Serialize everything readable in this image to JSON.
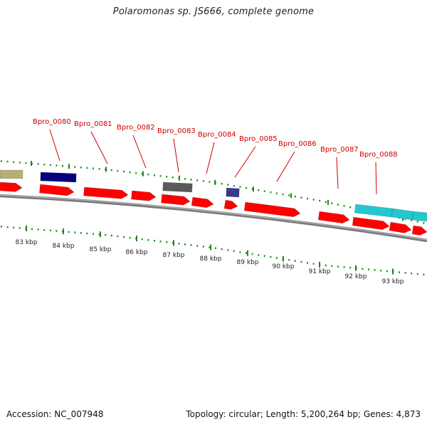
{
  "header": {
    "title": "Polaromonas sp. JS666, complete genome"
  },
  "footer": {
    "accession": "Accession: NC_007948",
    "summary": "Topology: circular; Length: 5,200,264 bp; Genes: 4,873"
  },
  "colors": {
    "cds_forward": "#ff0000",
    "cds_dark": "#00007f",
    "cds_gray": "#5a5a5a",
    "cds_slate": "#3a3a8c",
    "cds_olive": "#b5b07a",
    "cds_cyan": "#22c7cf",
    "tick": "#1a8c1a",
    "label": "#cc0000",
    "backbone": "#7a7a7a"
  },
  "scale": {
    "unit": "kbp",
    "ticks": [
      {
        "kbp": 83,
        "label": "83 kbp"
      },
      {
        "kbp": 84,
        "label": "84 kbp"
      },
      {
        "kbp": 85,
        "label": "85 kbp"
      },
      {
        "kbp": 86,
        "label": "86 kbp"
      },
      {
        "kbp": 87,
        "label": "87 kbp"
      },
      {
        "kbp": 88,
        "label": "88 kbp"
      },
      {
        "kbp": 89,
        "label": "89 kbp"
      },
      {
        "kbp": 90,
        "label": "90 kbp"
      },
      {
        "kbp": 91,
        "label": "91 kbp"
      },
      {
        "kbp": 92,
        "label": "92 kbp"
      },
      {
        "kbp": 93,
        "label": "93 kbp"
      }
    ]
  },
  "genes": [
    {
      "name": "Bpro_0080"
    },
    {
      "name": "Bpro_0081"
    },
    {
      "name": "Bpro_0082"
    },
    {
      "name": "Bpro_0083"
    },
    {
      "name": "Bpro_0084"
    },
    {
      "name": "Bpro_0085"
    },
    {
      "name": "Bpro_0086"
    },
    {
      "name": "Bpro_0087"
    },
    {
      "name": "Bpro_0088"
    }
  ]
}
